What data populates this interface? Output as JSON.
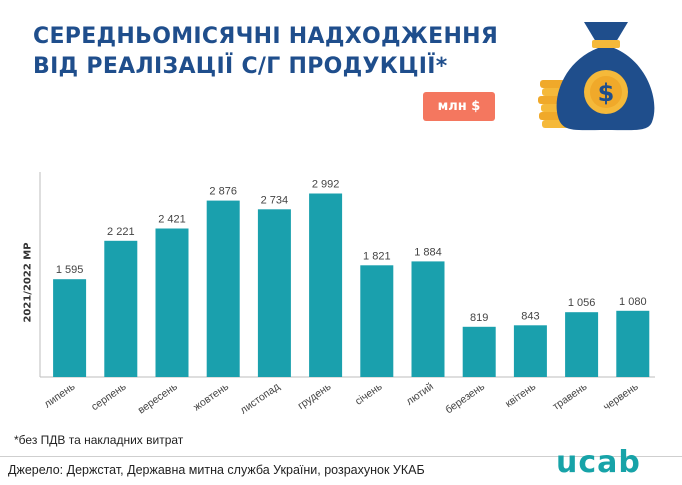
{
  "header": {
    "title_line1": "СЕРЕДНЬОМІСЯЧНІ НАДХОДЖЕННЯ",
    "title_line2": "ВІД РЕАЛІЗАЦІЇ С/Г ПРОДУКЦІЇ*",
    "unit_badge": "млн $"
  },
  "chart_data": {
    "type": "bar",
    "title": "СЕРЕДНЬОМІСЯЧНІ НАДХОДЖЕННЯ ВІД РЕАЛІЗАЦІЇ С/Г ПРОДУКЦІЇ*",
    "ylabel": "2021/2022 МР",
    "xlabel": "",
    "unit": "млн $",
    "ylim": [
      0,
      3500
    ],
    "grid": false,
    "categories": [
      "липень",
      "серпень",
      "вересень",
      "жовтень",
      "листопад",
      "грудень",
      "січень",
      "лютий",
      "березень",
      "квітень",
      "травень",
      "червень"
    ],
    "values": [
      1595,
      2221,
      2421,
      2876,
      2734,
      2992,
      1821,
      1884,
      819,
      843,
      1056,
      1080
    ],
    "value_labels": [
      "1 595",
      "2 221",
      "2 421",
      "2 876",
      "2 734",
      "2 992",
      "1 821",
      "1 884",
      "819",
      "843",
      "1 056",
      "1 080"
    ],
    "bar_color": "#1aa0ad"
  },
  "footnote": "*без ПДВ та накладних витрат",
  "source": "Джерело: Держстат, Державна митна служба України, розрахунок УКАБ",
  "logo_text": "ucab",
  "colors": {
    "title": "#1f4e8c",
    "badge": "#f4775f",
    "bar": "#1aa0ad",
    "logo": "#17a3a8"
  },
  "icons": {
    "illustration": "money-bag-icon"
  }
}
